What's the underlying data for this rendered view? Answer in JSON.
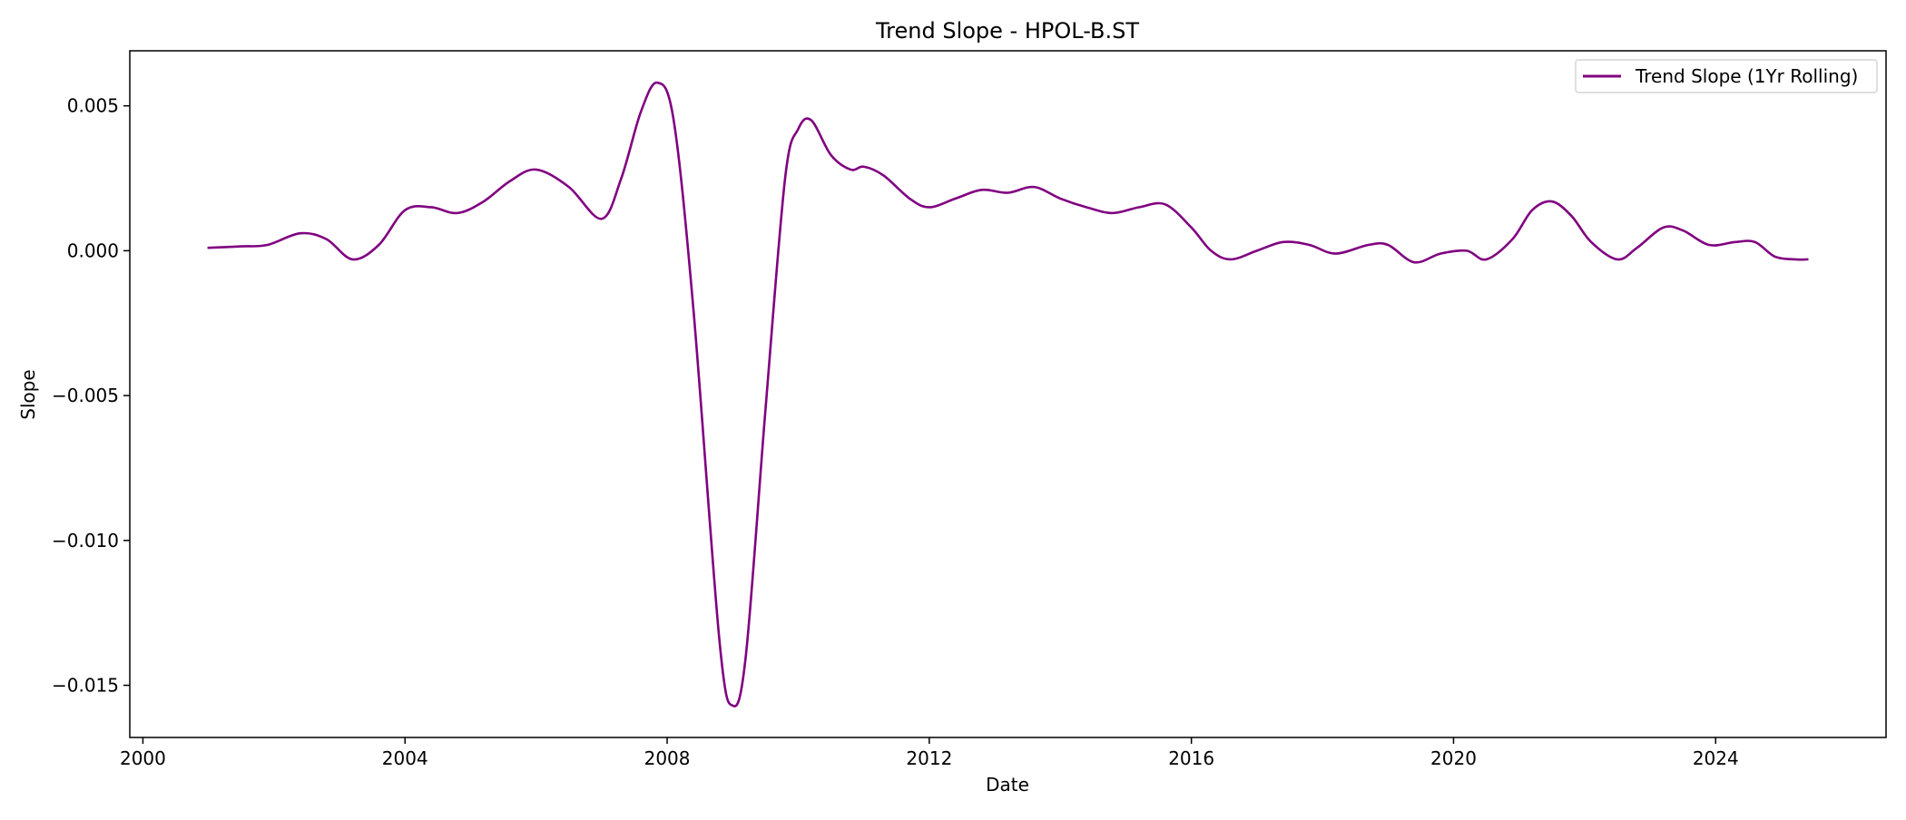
{
  "chart_data": {
    "type": "line",
    "title": "Trend Slope - HPOL-B.ST",
    "xlabel": "Date",
    "ylabel": "Slope",
    "xlim": [
      1999.8,
      2026.6
    ],
    "ylim": [
      -0.0168,
      0.0069
    ],
    "x_ticks": [
      2000,
      2004,
      2008,
      2012,
      2016,
      2020,
      2024
    ],
    "x_tick_labels": [
      "2000",
      "2004",
      "2008",
      "2012",
      "2016",
      "2020",
      "2024"
    ],
    "y_ticks": [
      0.005,
      0.0,
      -0.005,
      -0.01,
      -0.015
    ],
    "y_tick_labels": [
      "0.005",
      "0.000",
      "−0.005",
      "−0.010",
      "−0.015"
    ],
    "grid": false,
    "legend_position": "top-right",
    "series": [
      {
        "name": "Trend Slope (1Yr Rolling)",
        "color": "#800080",
        "x": [
          2001.0,
          2001.5,
          2001.9,
          2002.4,
          2002.8,
          2003.2,
          2003.6,
          2004.0,
          2004.4,
          2004.8,
          2005.2,
          2005.6,
          2006.0,
          2006.5,
          2007.0,
          2007.3,
          2007.6,
          2007.85,
          2008.1,
          2008.4,
          2008.8,
          2009.0,
          2009.2,
          2009.5,
          2009.8,
          2010.0,
          2010.2,
          2010.5,
          2010.8,
          2011.0,
          2011.3,
          2011.7,
          2012.0,
          2012.4,
          2012.8,
          2013.2,
          2013.6,
          2014.0,
          2014.4,
          2014.8,
          2015.2,
          2015.6,
          2016.0,
          2016.3,
          2016.6,
          2017.0,
          2017.4,
          2017.8,
          2018.2,
          2018.7,
          2019.0,
          2019.4,
          2019.8,
          2020.2,
          2020.5,
          2020.9,
          2021.2,
          2021.5,
          2021.8,
          2022.1,
          2022.5,
          2022.8,
          2023.2,
          2023.5,
          2023.9,
          2024.3,
          2024.6,
          2024.9,
          2025.2,
          2025.4
        ],
        "values": [
          0.0001,
          0.00015,
          0.0002,
          0.0006,
          0.0004,
          -0.0003,
          0.0002,
          0.0014,
          0.0015,
          0.0013,
          0.0017,
          0.0024,
          0.0028,
          0.0022,
          0.0011,
          0.0025,
          0.0048,
          0.0058,
          0.0045,
          -0.002,
          -0.0135,
          -0.0157,
          -0.014,
          -0.0055,
          0.0025,
          0.0042,
          0.0045,
          0.0033,
          0.0028,
          0.0029,
          0.0026,
          0.0018,
          0.0015,
          0.0018,
          0.0021,
          0.002,
          0.0022,
          0.0018,
          0.0015,
          0.0013,
          0.0015,
          0.0016,
          0.0008,
          0.0,
          -0.0003,
          0.0,
          0.0003,
          0.0002,
          -0.0001,
          0.0002,
          0.0002,
          -0.0004,
          -0.0001,
          0.0,
          -0.0003,
          0.0004,
          0.0014,
          0.0017,
          0.0012,
          0.0003,
          -0.0003,
          0.0001,
          0.0008,
          0.0007,
          0.0002,
          0.0003,
          0.0003,
          -0.0002,
          -0.0003,
          -0.0003
        ]
      }
    ]
  }
}
